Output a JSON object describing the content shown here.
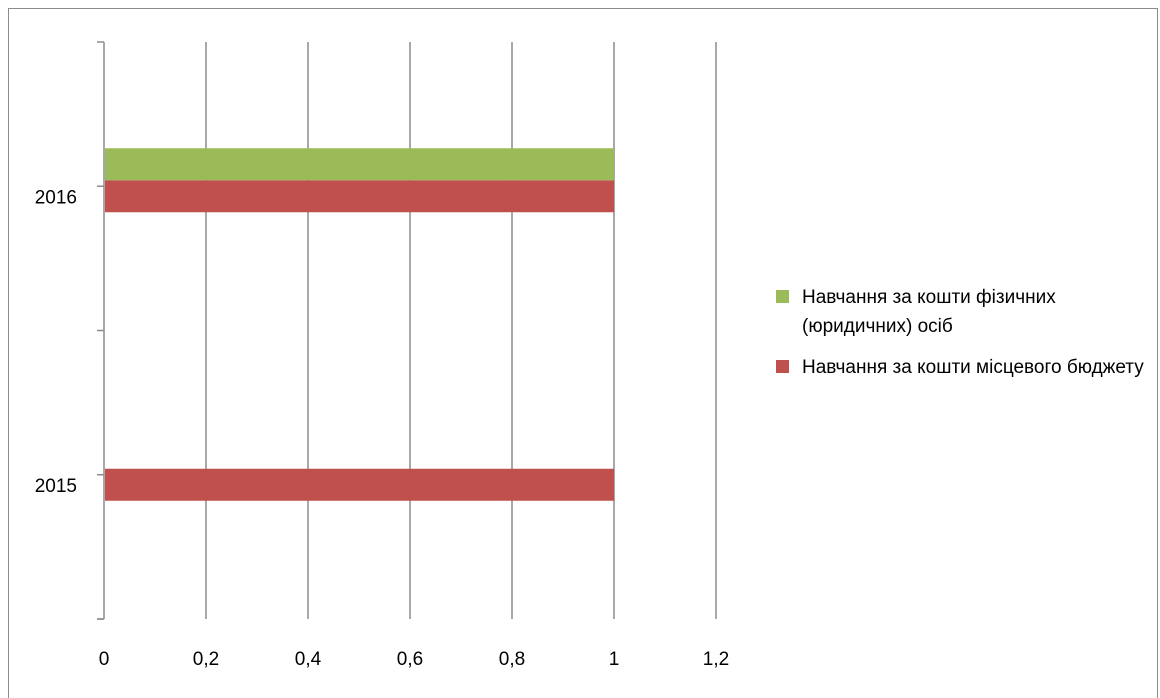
{
  "chart_data": {
    "type": "bar",
    "orientation": "horizontal",
    "categories": [
      "2015",
      "2016"
    ],
    "series": [
      {
        "name": "Навчання за кошти місцевого бюджету",
        "values": [
          1,
          1
        ],
        "color": "#c0504d"
      },
      {
        "name": "Навчання за кошти фізичних (юридичних) осіб",
        "values": [
          null,
          1
        ],
        "color": "#9bbb59"
      }
    ],
    "x_ticks": [
      "0",
      "0,2",
      "0,4",
      "0,6",
      "0,8",
      "1",
      "1,2"
    ],
    "xlim": [
      0,
      1.2
    ],
    "grid": "vertical",
    "legend": {
      "position": "right",
      "order": [
        1,
        0
      ]
    }
  }
}
